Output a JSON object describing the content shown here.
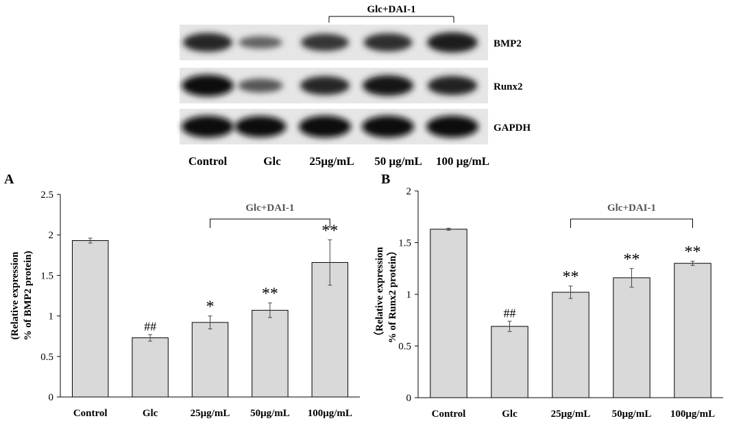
{
  "figure": {
    "blot": {
      "bracket_label": "Glc+DAI-1",
      "rows": [
        {
          "name": "BMP2",
          "intensities": [
            0.78,
            0.32,
            0.66,
            0.72,
            0.88
          ]
        },
        {
          "name": "Runx2",
          "intensities": [
            0.98,
            0.42,
            0.78,
            0.9,
            0.8
          ]
        },
        {
          "name": "GAPDH",
          "intensities": [
            1.0,
            0.95,
            1.0,
            1.0,
            1.0
          ]
        }
      ],
      "lanes": [
        "Control",
        "Glc",
        "25μg/mL",
        "50 μg/mL",
        "100 μg/mL"
      ]
    }
  },
  "chart_data": [
    {
      "panel": "A",
      "type": "bar",
      "categories": [
        "Control",
        "Glc",
        "25μg/mL",
        "50μg/mL",
        "100μg/mL"
      ],
      "values": [
        1.93,
        0.73,
        0.92,
        1.07,
        1.66
      ],
      "errors": [
        0.03,
        0.04,
        0.08,
        0.09,
        0.28
      ],
      "markers": [
        "",
        "##",
        "*",
        "**",
        "**"
      ],
      "ylabel_lines": [
        "(Relative expression",
        "% of BMP2 protein)"
      ],
      "xlabel": "",
      "ylim": [
        0,
        2.5
      ],
      "yticks": [
        0,
        0.5,
        1,
        1.5,
        2,
        2.5
      ],
      "ytick_labels": [
        "0",
        "0.5",
        "1",
        "1.5",
        "2",
        "2.5"
      ],
      "bracket_label": "Glc+DAI-1",
      "bracket_span": [
        2,
        4
      ],
      "grid": false,
      "bar_color": "#d9d9d9"
    },
    {
      "panel": "B",
      "type": "bar",
      "categories": [
        "Control",
        "Glc",
        "25μg/mL",
        "50μg/mL",
        "100μg/mL"
      ],
      "values": [
        1.63,
        0.69,
        1.02,
        1.16,
        1.3
      ],
      "errors": [
        0.01,
        0.05,
        0.06,
        0.09,
        0.02
      ],
      "markers": [
        "",
        "##",
        "**",
        "**",
        "**"
      ],
      "ylabel_lines": [
        "（Relative expression",
        "% of Runx2 protein）"
      ],
      "xlabel": "",
      "ylim": [
        0,
        2
      ],
      "yticks": [
        0,
        0.5,
        1,
        1.5,
        2
      ],
      "ytick_labels": [
        "0",
        "0.5",
        "1",
        "1.5",
        "2"
      ],
      "bracket_label": "Glc+DAI-1",
      "bracket_span": [
        2,
        4
      ],
      "grid": false,
      "bar_color": "#d9d9d9"
    }
  ]
}
